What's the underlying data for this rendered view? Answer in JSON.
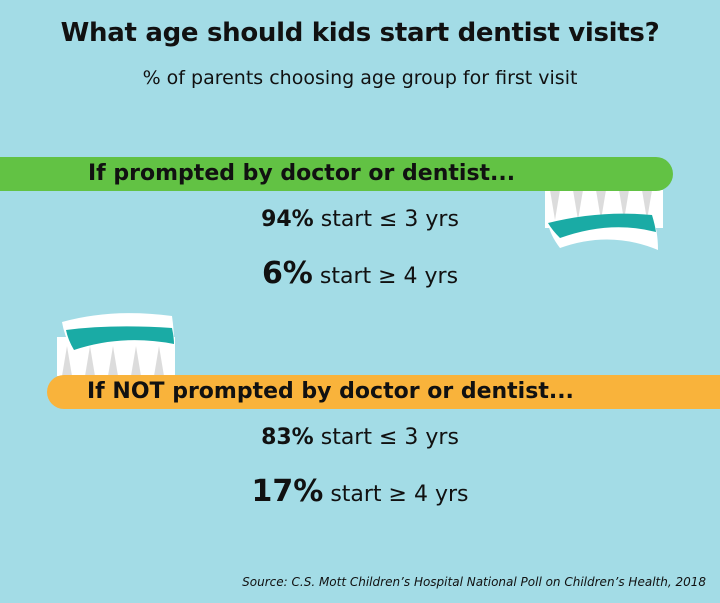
{
  "title": "What age should kids start dentist visits?",
  "subtitle": "% of parents choosing age group for first visit",
  "colors": {
    "background": "#a3dce6",
    "prompted_bar": "#62c244",
    "not_prompted_bar": "#f9b33b",
    "toothpaste": "#1aaba5"
  },
  "sections": [
    {
      "label": "If prompted by doctor or dentist...",
      "stats": [
        {
          "value": "94%",
          "text": "start ≤ 3 yrs"
        },
        {
          "value": "6%",
          "text": "start ≥ 4 yrs"
        }
      ]
    },
    {
      "label": "If NOT prompted by doctor or dentist...",
      "stats": [
        {
          "value": "83%",
          "text": "start ≤ 3 yrs"
        },
        {
          "value": "17%",
          "text": "start ≥ 4 yrs"
        }
      ]
    }
  ],
  "source": "Source: C.S. Mott Children’s Hospital National Poll on Children’s Health, 2018"
}
